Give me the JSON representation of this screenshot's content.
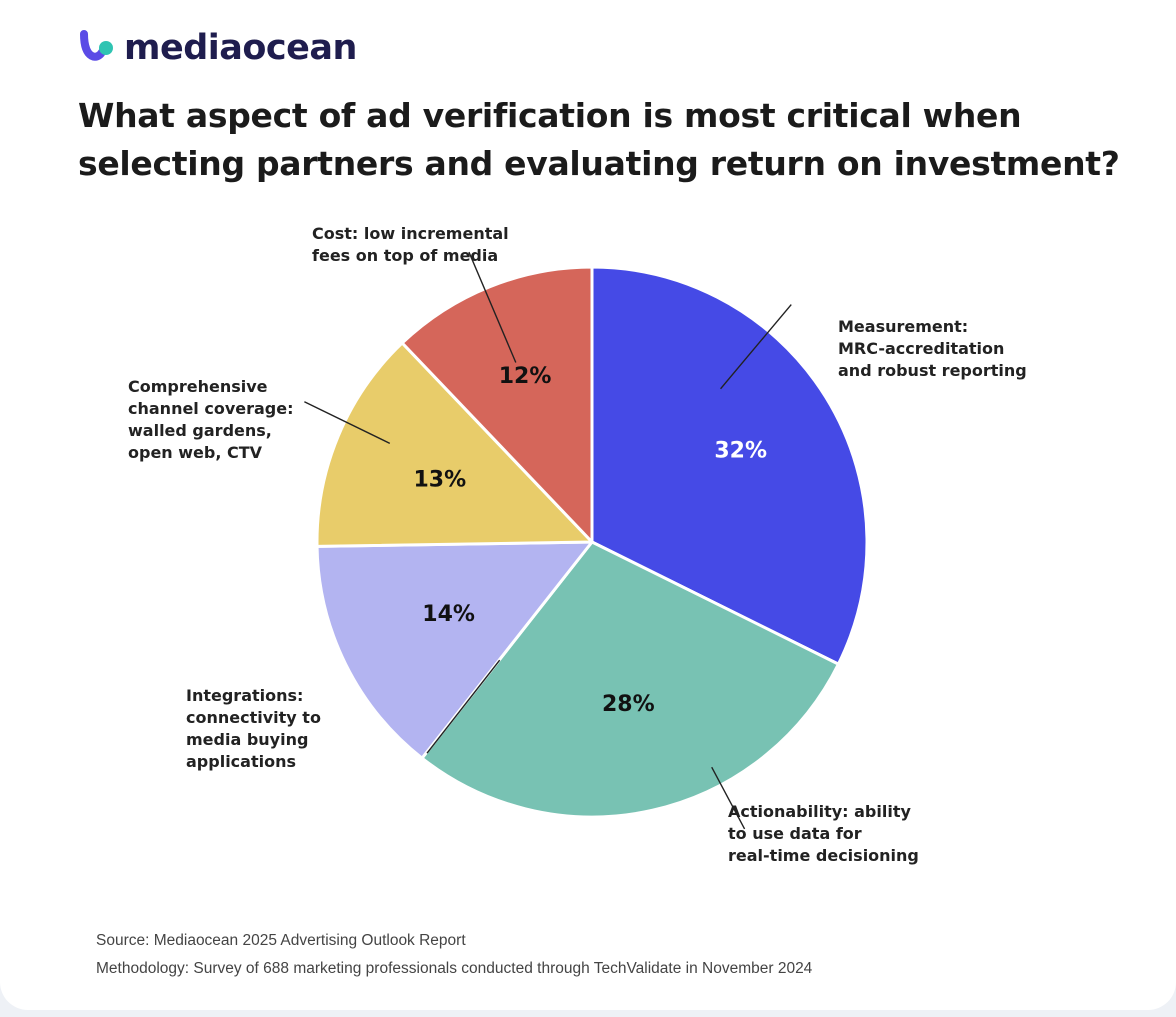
{
  "brand": {
    "name": "mediaocean",
    "colors": {
      "blue": "#4f46e5",
      "teal": "#2fc4b2"
    }
  },
  "title_lines": [
    "What aspect of ad verification is most critical when",
    "selecting partners and evaluating return on investment?"
  ],
  "chart_data": {
    "type": "pie",
    "title": "What aspect of ad verification is most critical when selecting partners and evaluating return on investment?",
    "slices": [
      {
        "id": "measurement",
        "value": 32,
        "label": "32%",
        "color": "#454ae6",
        "text_color": "#ffffff",
        "legend": [
          "Measurement:",
          "MRC-accreditation",
          "and robust reporting"
        ]
      },
      {
        "id": "actionability",
        "value": 28,
        "label": "28%",
        "color": "#78c2b3",
        "text_color": "#111111",
        "legend": [
          "Actionability: ability",
          "to use data for",
          "real-time decisioning"
        ]
      },
      {
        "id": "integrations",
        "value": 14,
        "label": "14%",
        "color": "#b3b4f1",
        "text_color": "#111111",
        "legend": [
          "Integrations:",
          "connectivity to",
          "media buying",
          "applications"
        ]
      },
      {
        "id": "coverage",
        "value": 13,
        "label": "13%",
        "color": "#e8cc6a",
        "text_color": "#111111",
        "legend": [
          "Comprehensive",
          "channel coverage:",
          "walled gardens,",
          "open web, CTV"
        ]
      },
      {
        "id": "cost",
        "value": 12,
        "label": "12%",
        "color": "#d5665a",
        "text_color": "#111111",
        "legend": [
          "Cost: low incremental",
          "fees on top of media"
        ]
      }
    ]
  },
  "footer": {
    "source": "Source: Mediaocean 2025 Advertising Outlook Report",
    "methodology": "Methodology: Survey of 688 marketing professionals conducted through TechValidate in November 2024"
  }
}
